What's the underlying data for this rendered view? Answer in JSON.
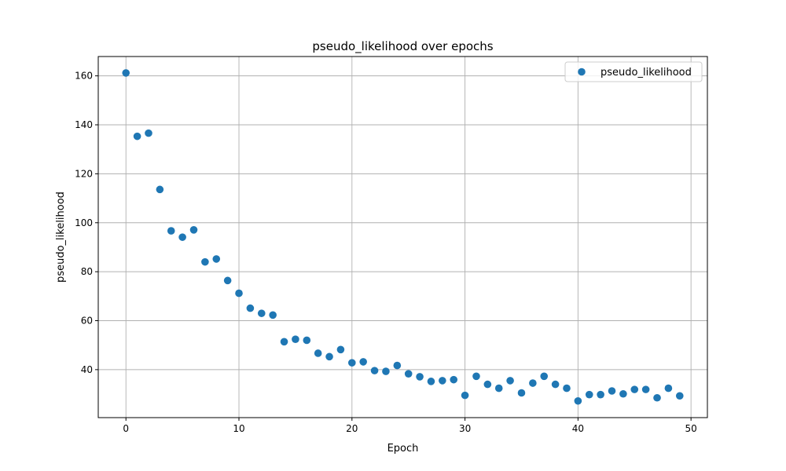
{
  "chart_data": {
    "type": "scatter",
    "title": "pseudo_likelihood over epochs",
    "xlabel": "Epoch",
    "ylabel": "pseudo_likelihood",
    "xlim": [
      -2.45,
      51.45
    ],
    "ylim": [
      20.4,
      167.9
    ],
    "xticks": [
      0,
      10,
      20,
      30,
      40,
      50
    ],
    "yticks": [
      40,
      60,
      80,
      100,
      120,
      140,
      160
    ],
    "grid": true,
    "legend_position": "top-right",
    "marker_color": "#1f77b4",
    "series": [
      {
        "name": "pseudo_likelihood",
        "x": [
          0,
          1,
          2,
          3,
          4,
          5,
          6,
          7,
          8,
          9,
          10,
          11,
          12,
          13,
          14,
          15,
          16,
          17,
          18,
          19,
          20,
          21,
          22,
          23,
          24,
          25,
          26,
          27,
          28,
          29,
          30,
          31,
          32,
          33,
          34,
          35,
          36,
          37,
          38,
          39,
          40,
          41,
          42,
          43,
          44,
          45,
          46,
          47,
          48,
          49
        ],
        "y": [
          161.2,
          135.3,
          136.6,
          113.6,
          96.7,
          94.1,
          97.1,
          84.0,
          85.2,
          76.4,
          71.2,
          65.1,
          63.0,
          62.3,
          51.4,
          52.4,
          52.0,
          46.7,
          45.3,
          48.2,
          42.8,
          43.2,
          39.6,
          39.3,
          41.7,
          38.3,
          37.1,
          35.2,
          35.5,
          35.9,
          29.5,
          37.3,
          34.0,
          32.4,
          35.5,
          30.5,
          34.5,
          37.3,
          34.0,
          32.4,
          27.2,
          29.8,
          29.8,
          31.3,
          30.1,
          31.9,
          31.9,
          28.5,
          32.4,
          29.3
        ]
      }
    ]
  }
}
